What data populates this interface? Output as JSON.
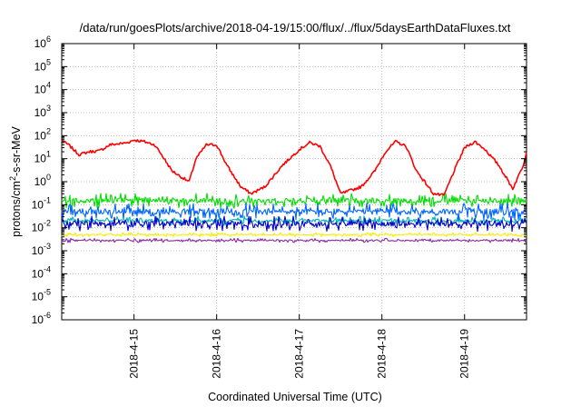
{
  "chart_data": {
    "type": "line",
    "title": "/data/run/goesPlots/archive/2018-04-19/15:00/flux/../flux/5daysEarthDataFluxes.txt",
    "xlabel": "Coordinated Universal Time (UTC)",
    "ylabel": "protons/cm2-s-sr-MeV",
    "ylabel_parts": {
      "pre": "protons/cm",
      "sup": "2",
      "post": "-s-sr-MeV"
    },
    "yscale": "log",
    "ylim": [
      1e-06,
      1000000.0
    ],
    "xlim": [
      "2018-04-14 03:00",
      "2018-04-19 18:00"
    ],
    "y_ticks": [
      {
        "base": "10",
        "exp": "-6"
      },
      {
        "base": "10",
        "exp": "-5"
      },
      {
        "base": "10",
        "exp": "-4"
      },
      {
        "base": "10",
        "exp": "-3"
      },
      {
        "base": "10",
        "exp": "-2"
      },
      {
        "base": "10",
        "exp": "-1"
      },
      {
        "base": "10",
        "exp": "0"
      },
      {
        "base": "10",
        "exp": "1"
      },
      {
        "base": "10",
        "exp": "2"
      },
      {
        "base": "10",
        "exp": "3"
      },
      {
        "base": "10",
        "exp": "4"
      },
      {
        "base": "10",
        "exp": "5"
      },
      {
        "base": "10",
        "exp": "6"
      }
    ],
    "x_ticks": [
      "2018-4-15",
      "2018-4-16",
      "2018-4-17",
      "2018-4-18",
      "2018-4-19"
    ],
    "grid": true,
    "series": [
      {
        "color": "#ff0000",
        "x": [
          "2018-04-14 03:00",
          "2018-04-14 05:00",
          "2018-04-14 08:00",
          "2018-04-14 11:00",
          "2018-04-14 14:00",
          "2018-04-14 17:00",
          "2018-04-14 20:00",
          "2018-04-14 22:00",
          "2018-04-15 00:00",
          "2018-04-15 03:00",
          "2018-04-15 06:00",
          "2018-04-15 08:00",
          "2018-04-15 11:00",
          "2018-04-15 14:00",
          "2018-04-15 16:00",
          "2018-04-15 18:00",
          "2018-04-15 21:00",
          "2018-04-16 00:00",
          "2018-04-16 03:00",
          "2018-04-16 07:00",
          "2018-04-16 10:00",
          "2018-04-16 14:00",
          "2018-04-16 19:00",
          "2018-04-17 00:00",
          "2018-04-17 03:00",
          "2018-04-17 06:00",
          "2018-04-17 09:00",
          "2018-04-17 12:00",
          "2018-04-17 18:00",
          "2018-04-17 22:00",
          "2018-04-18 01:00",
          "2018-04-18 04:00",
          "2018-04-18 07:00",
          "2018-04-18 10:00",
          "2018-04-18 15:00",
          "2018-04-18 18:00",
          "2018-04-18 21:00",
          "2018-04-19 00:00",
          "2018-04-19 03:00",
          "2018-04-19 06:00",
          "2018-04-19 10:00",
          "2018-04-19 14:00",
          "2018-04-19 17:00",
          "2018-04-19 18:00"
        ],
        "y": [
          60,
          40,
          15,
          20,
          22,
          40,
          45,
          50,
          65,
          55,
          40,
          15,
          3,
          1.5,
          1.0,
          10,
          40,
          40,
          5,
          0.6,
          0.3,
          0.6,
          5,
          25,
          50,
          35,
          5,
          0.3,
          0.6,
          3,
          20,
          55,
          35,
          3,
          0.3,
          0.25,
          3,
          30,
          55,
          25,
          5,
          0.5,
          5,
          20
        ]
      },
      {
        "color": "#00dd00",
        "x": [
          "2018-04-14 03:00",
          "2018-04-19 18:00"
        ],
        "y": [
          0.15,
          0.15
        ]
      },
      {
        "color": "#0066ff",
        "x": [
          "2018-04-14 03:00",
          "2018-04-19 18:00"
        ],
        "y": [
          0.05,
          0.05
        ]
      },
      {
        "color": "#0000cc",
        "x": [
          "2018-04-14 03:00",
          "2018-04-19 18:00"
        ],
        "y": [
          0.015,
          0.015
        ]
      },
      {
        "color": "#00b4b4",
        "x": [
          "2018-04-14 03:00",
          "2018-04-19 18:00"
        ],
        "y": [
          0.02,
          0.02
        ]
      },
      {
        "color": "#f2ef00",
        "x": [
          "2018-04-14 03:00",
          "2018-04-19 18:00"
        ],
        "y": [
          0.005,
          0.005
        ]
      },
      {
        "color": "#8a2d9e",
        "x": [
          "2018-04-14 03:00",
          "2018-04-19 18:00"
        ],
        "y": [
          0.0028,
          0.0028
        ]
      }
    ]
  }
}
